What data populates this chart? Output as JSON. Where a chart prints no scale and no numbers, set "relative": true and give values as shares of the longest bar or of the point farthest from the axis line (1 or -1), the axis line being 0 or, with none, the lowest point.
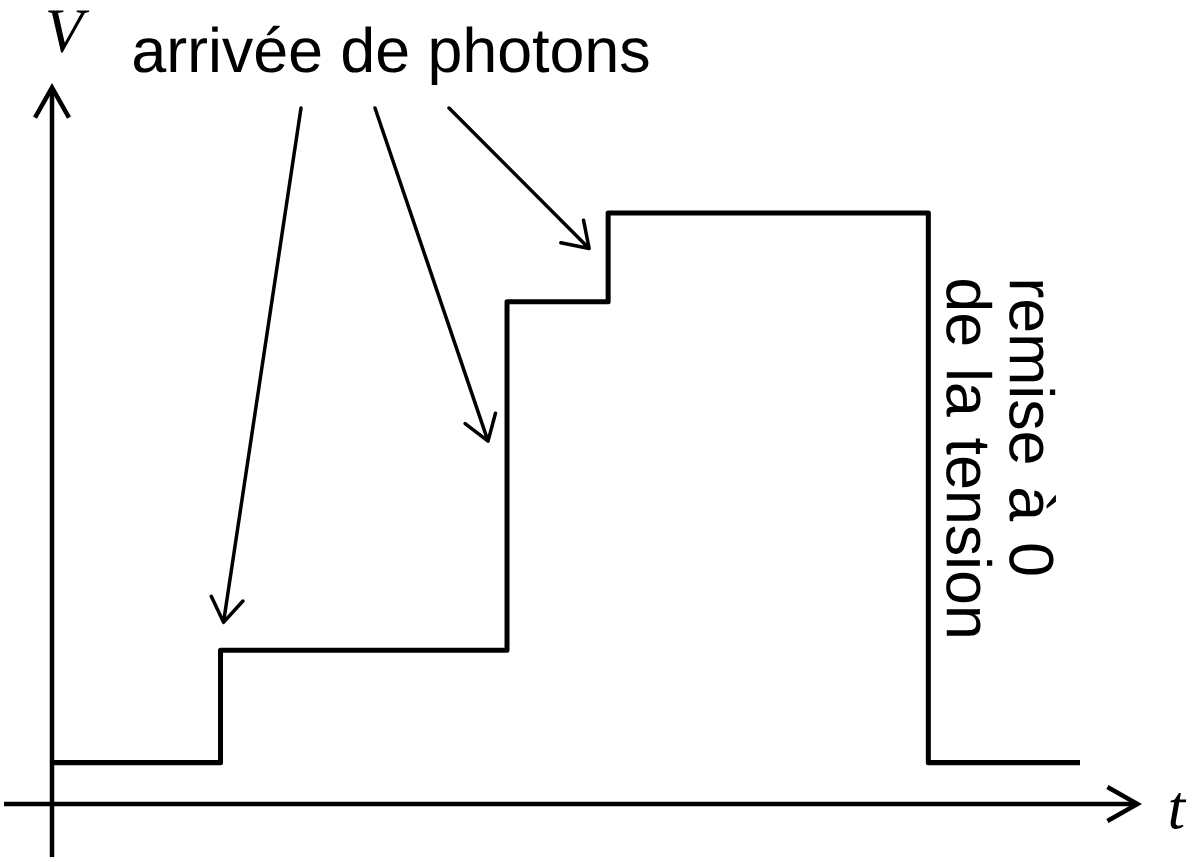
{
  "chart_data": {
    "type": "step",
    "relative": true,
    "xlabel": "t",
    "ylabel": "V",
    "categories": [
      null,
      null,
      null,
      null,
      null,
      null,
      null,
      null,
      null,
      null,
      null,
      null,
      null,
      null,
      null,
      null,
      null,
      null,
      null,
      null,
      null,
      null,
      null,
      null,
      null,
      null,
      null,
      null,
      null,
      null,
      null,
      null,
      null,
      null,
      null,
      null,
      null,
      null,
      null,
      null,
      null,
      null,
      null,
      null,
      null,
      null,
      null,
      null,
      null,
      null,
      null,
      null,
      null,
      null,
      null,
      null,
      null,
      null,
      null,
      null,
      null,
      null
    ],
    "values": [
      0.07,
      0.07,
      0.07,
      0.07,
      0.07,
      0.07,
      0.07,
      0.07,
      0.07,
      0.07,
      0.26,
      0.26,
      0.26,
      0.26,
      0.26,
      0.26,
      0.26,
      0.26,
      0.26,
      0.26,
      0.26,
      0.26,
      0.26,
      0.26,
      0.26,
      0.26,
      0.26,
      0.85,
      0.85,
      0.85,
      0.85,
      0.85,
      0.85,
      1,
      1,
      1,
      1,
      1,
      1,
      1,
      1,
      1,
      1,
      1,
      1,
      1,
      1,
      1,
      1,
      1,
      1,
      1,
      0.07,
      0.07,
      0.07,
      0.07,
      0.07,
      0.07,
      0.07,
      0.07,
      0.07,
      0.07
    ],
    "color": "#000000",
    "annotations": [
      "arrivée de photons",
      "remise à 0 de la tension"
    ]
  }
}
